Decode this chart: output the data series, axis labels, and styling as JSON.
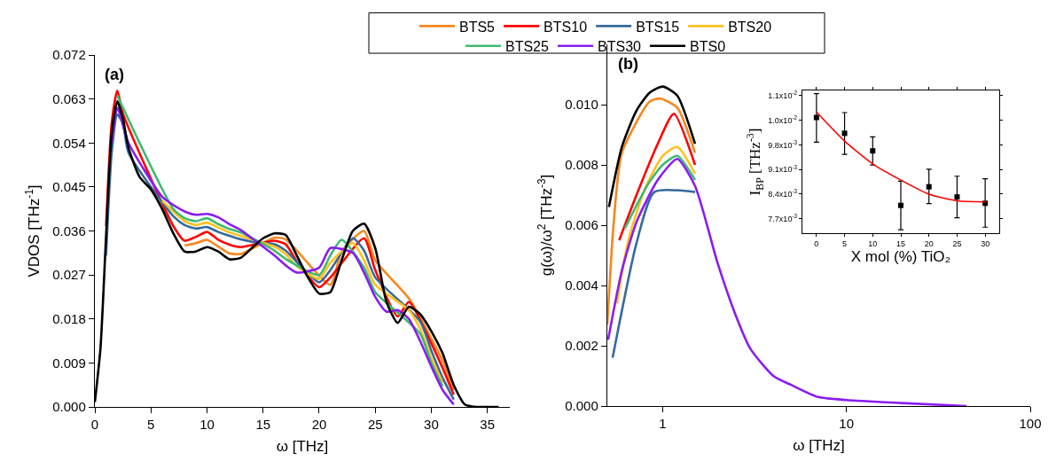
{
  "chart_data": [
    {
      "type": "line",
      "xlabel": "ω [THz]",
      "ylabel": "VDOS [THz$^{-1}$]",
      "annotations": [
        "(a)"
      ],
      "legend": "top",
      "xlim": [
        0,
        37
      ],
      "xticks": [
        0,
        5,
        10,
        15,
        20,
        25,
        30,
        35
      ],
      "ylim": [
        0,
        0.072
      ],
      "yticks": [
        {
          "value": 0,
          "label": "0.000"
        },
        {
          "value": 0.009,
          "label": "0.009"
        },
        {
          "value": 0.018,
          "label": "0.018"
        },
        {
          "value": 0.027,
          "label": "0.027"
        },
        {
          "value": 0.036,
          "label": "0.036"
        },
        {
          "value": 0.045,
          "label": "0.045"
        },
        {
          "value": 0.054,
          "label": "0.054"
        },
        {
          "value": 0.063,
          "label": "0.063"
        },
        {
          "value": 0.072,
          "label": "0.072"
        }
      ],
      "x": [
        0,
        0.5,
        1,
        1.5,
        2,
        2.5,
        3,
        4,
        5,
        6,
        7,
        8,
        9,
        10,
        11,
        12,
        13,
        14,
        15,
        16,
        17,
        18,
        19,
        20,
        21,
        22,
        23,
        24,
        25,
        26,
        27,
        28,
        29,
        30,
        31,
        32,
        33,
        34,
        35,
        36
      ],
      "series": [
        {
          "name": "BTS5",
          "color": "#f7861c",
          "values": [
            null,
            null,
            null,
            null,
            null,
            null,
            null,
            null,
            null,
            null,
            null,
            0.033,
            0.0335,
            0.0342,
            0.0328,
            0.0314,
            0.0313,
            null,
            null,
            0.0346,
            0.0343,
            null,
            null,
            null,
            0.025,
            0.0318,
            null,
            0.036,
            0.03,
            null,
            null,
            0.0222,
            null,
            0.014,
            0.0095,
            0.0035,
            null,
            null,
            null,
            null
          ]
        },
        {
          "name": "BTS10",
          "color": "#ff0000",
          "values": [
            null,
            null,
            0.037,
            0.058,
            0.0647,
            0.06,
            null,
            null,
            null,
            null,
            0.037,
            0.034,
            0.0348,
            0.0358,
            0.0342,
            0.0332,
            0.0327,
            null,
            null,
            0.034,
            0.0333,
            0.0298,
            null,
            0.0245,
            0.0265,
            null,
            null,
            0.0345,
            0.028,
            null,
            0.0185,
            0.0215,
            null,
            0.013,
            0.008,
            0.0025,
            null,
            null,
            null,
            null
          ]
        },
        {
          "name": "BTS15",
          "color": "#366a9c",
          "values": [
            null,
            null,
            0.031,
            0.052,
            0.0598,
            0.058,
            0.052,
            null,
            null,
            null,
            0.039,
            0.0372,
            0.0365,
            0.0368,
            0.0358,
            0.035,
            0.0343,
            0.0338,
            null,
            0.0333,
            0.032,
            null,
            null,
            0.0255,
            0.028,
            null,
            0.0345,
            0.032,
            0.0265,
            null,
            null,
            null,
            0.0175,
            0.0115,
            0.006,
            0.0015,
            null,
            null,
            null,
            null
          ]
        },
        {
          "name": "BTS20",
          "color": "#ffc11f",
          "values": [
            null,
            null,
            null,
            null,
            null,
            null,
            null,
            null,
            null,
            0.0422,
            null,
            0.038,
            0.0372,
            0.0377,
            0.0367,
            0.0357,
            0.035,
            null,
            null,
            0.0328,
            0.0313,
            0.0288,
            null,
            0.0262,
            0.0295,
            null,
            0.0335,
            0.03,
            0.025,
            null,
            null,
            0.0198,
            0.016,
            0.01,
            0.005,
            null,
            null,
            null,
            null,
            null
          ]
        },
        {
          "name": "BTS25",
          "color": "#3dbb6e",
          "values": [
            null,
            null,
            null,
            null,
            0.0637,
            null,
            null,
            null,
            null,
            null,
            0.0405,
            0.0386,
            0.038,
            0.0386,
            0.0374,
            0.0364,
            0.0357,
            null,
            null,
            0.032,
            0.0303,
            null,
            null,
            0.027,
            0.031,
            0.0342,
            null,
            0.0285,
            0.0235,
            null,
            null,
            null,
            0.015,
            0.009,
            0.0042,
            null,
            null,
            null,
            null,
            null
          ]
        },
        {
          "name": "BTS30",
          "color": "#8a1cf0",
          "values": [
            null,
            null,
            null,
            0.054,
            0.0612,
            null,
            0.054,
            null,
            null,
            0.043,
            0.0413,
            0.04,
            0.0393,
            0.0395,
            0.0388,
            0.0374,
            0.0362,
            0.0345,
            null,
            0.031,
            0.029,
            0.0275,
            null,
            0.0285,
            0.0325,
            null,
            0.0315,
            0.0275,
            0.0225,
            0.0195,
            0.0198,
            0.018,
            0.0135,
            0.0083,
            0.0035,
            0.0005,
            null,
            null,
            null,
            null
          ]
        },
        {
          "name": "BTS0",
          "color": "#000000",
          "values": [
            0.001,
            0.012,
            0.035,
            0.056,
            0.0625,
            0.059,
            0.053,
            0.047,
            0.0445,
            0.0405,
            0.0355,
            0.0318,
            0.0318,
            0.0327,
            0.0318,
            0.0302,
            0.0305,
            0.0325,
            0.0345,
            0.0355,
            0.0352,
            0.031,
            0.0265,
            0.0232,
            0.0235,
            0.03,
            0.036,
            0.0375,
            0.0325,
            0.0215,
            0.0172,
            0.0205,
            0.019,
            0.0155,
            0.011,
            0.0045,
            0.0005,
            0,
            0,
            0
          ]
        }
      ]
    },
    {
      "type": "line",
      "xlabel": "ω [THz]",
      "ylabel": "g(ω)/ω$^{2}$ [THz$^{-3}$]",
      "annotations": [
        "(b)"
      ],
      "log": "x",
      "xlim": [
        0.5,
        100
      ],
      "xticks": [
        1,
        10,
        100
      ],
      "ylim": [
        0,
        0.012
      ],
      "yticks": [
        {
          "value": 0,
          "label": "0.000"
        },
        {
          "value": 0.002,
          "label": "0.002"
        },
        {
          "value": 0.004,
          "label": "0.004"
        },
        {
          "value": 0.006,
          "label": "0.006"
        },
        {
          "value": 0.008,
          "label": "0.008"
        },
        {
          "value": 0.01,
          "label": "0.010"
        }
      ],
      "series": [
        {
          "color": "#f7861c",
          "x": [
            0.5,
            0.54,
            0.6,
            0.85,
            0.97,
            1.2,
            1.5
          ],
          "values": [
            0.0027,
            0.006,
            0.0084,
            0.0101,
            0.0102,
            0.0099,
            0.0084
          ]
        },
        {
          "color": "#ff0000",
          "x": [
            0.58,
            0.72,
            0.94,
            1.15,
            1.5
          ],
          "values": [
            0.0055,
            0.007,
            0.0087,
            0.0097,
            0.008
          ]
        },
        {
          "color": "#366a9c",
          "x": [
            0.534,
            0.72,
            0.9,
            1.5
          ],
          "values": [
            0.0016,
            0.0054,
            0.0071,
            0.0071
          ]
        },
        {
          "color": "#ffc11f",
          "x": [
            0.564,
            0.65,
            0.8,
            1.0,
            1.2,
            1.5
          ],
          "values": [
            0.0034,
            0.0055,
            0.0072,
            0.0083,
            0.0086,
            0.0077
          ]
        },
        {
          "color": "#3dbb6e",
          "x": [
            0.623,
            0.84,
            1.0,
            1.2,
            1.5
          ],
          "values": [
            0.0059,
            0.0074,
            0.008,
            0.0083,
            0.0075
          ]
        },
        {
          "color": "#8a1cf0",
          "x": [
            0.505,
            0.6,
            0.72,
            0.94,
            1.2,
            1.5,
            2,
            2.5,
            3,
            4,
            5,
            7,
            10,
            20,
            45
          ],
          "values": [
            0.0022,
            0.0045,
            0.0061,
            0.0075,
            0.0082,
            0.0073,
            0.0047,
            0.003,
            0.0019,
            0.001,
            0.0007,
            0.0003,
            0.0002,
            0.0001,
            0
          ]
        },
        {
          "color": "#000000",
          "x": [
            0.51,
            0.6,
            0.72,
            0.85,
            1.0,
            1.2,
            1.5
          ],
          "values": [
            0.0066,
            0.0086,
            0.0098,
            0.0104,
            0.0106,
            0.0103,
            0.0087
          ]
        }
      ]
    },
    {
      "type": "scatter",
      "xlabel": "X mol (%) TiO₂",
      "ylabel": "I$_{BP}$ [THz$^{-3}$]",
      "xlim": [
        -2.5,
        32.5
      ],
      "xticks": [
        0,
        5,
        10,
        15,
        20,
        25,
        30
      ],
      "ylim": [
        0.00729,
        0.01135
      ],
      "yticks": [
        {
          "value": 0.0077,
          "label": "7.7x10$^{-3}$"
        },
        {
          "value": 0.0084,
          "label": "8.4x10$^{-3}$"
        },
        {
          "value": 0.0091,
          "label": "9.1x10$^{-3}$"
        },
        {
          "value": 0.0098,
          "label": "9.8x10$^{-3}$"
        },
        {
          "value": 0.0105,
          "label": "1.0x10$^{-2}$"
        },
        {
          "value": 0.0112,
          "label": "1.1x10$^{-2}$"
        }
      ],
      "x": [
        0,
        5,
        10,
        15,
        20,
        25,
        30
      ],
      "series": [
        {
          "color": "#000000",
          "marker": "square",
          "values": [
            0.01058,
            0.01013,
            0.00963,
            0.00808,
            0.00861,
            0.00832,
            0.00814
          ],
          "errors": [
            [
              0.00988,
              0.01126
            ],
            [
              0.00953,
              0.01072
            ],
            [
              0.00923,
              0.01003
            ],
            [
              0.00739,
              0.00877
            ],
            [
              0.00813,
              0.00911
            ],
            [
              0.00773,
              0.00891
            ],
            [
              0.00746,
              0.00884
            ]
          ]
        },
        {
          "type": "line",
          "color": "#ff0000",
          "values": [
            0.01074,
            0.00991,
            0.00926,
            0.0088,
            0.0084,
            0.00821,
            0.00818
          ]
        }
      ]
    }
  ]
}
